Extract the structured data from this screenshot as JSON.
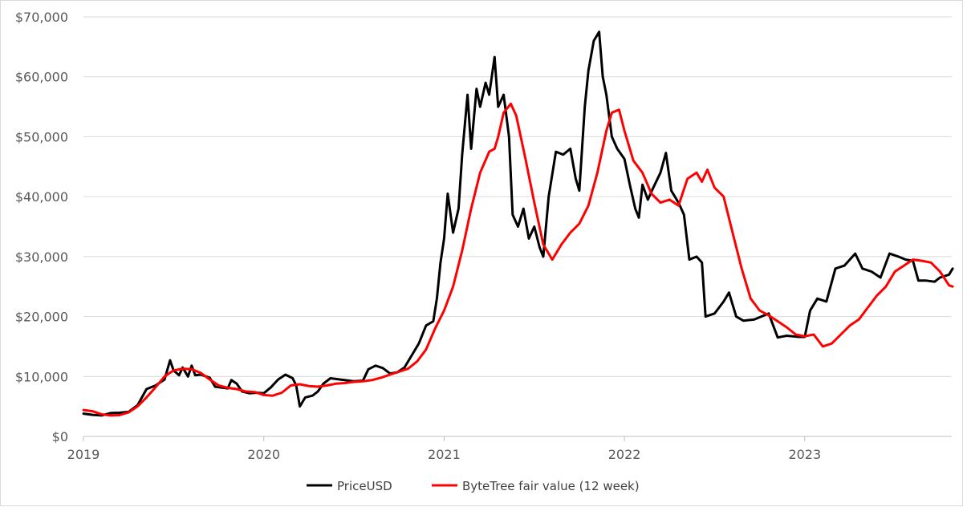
{
  "chart_data": {
    "type": "line",
    "title": "",
    "xlabel": "",
    "ylabel": "",
    "x_range": [
      2019.0,
      2023.83
    ],
    "ylim": [
      0,
      70000
    ],
    "y_ticks": [
      0,
      10000,
      20000,
      30000,
      40000,
      50000,
      60000,
      70000
    ],
    "y_tick_labels": [
      "$0",
      "$10,000",
      "$20,000",
      "$30,000",
      "$40,000",
      "$50,000",
      "$60,000",
      "$70,000"
    ],
    "x_ticks": [
      2019,
      2020,
      2021,
      2022,
      2023
    ],
    "x_tick_labels": [
      "2019",
      "2020",
      "2021",
      "2022",
      "2023"
    ],
    "grid": "horizontal",
    "legend_position": "bottom",
    "series": [
      {
        "name": "PriceUSD",
        "color": "#000000",
        "points": [
          [
            2019.0,
            3800
          ],
          [
            2019.05,
            3600
          ],
          [
            2019.1,
            3500
          ],
          [
            2019.15,
            3900
          ],
          [
            2019.2,
            3950
          ],
          [
            2019.25,
            4100
          ],
          [
            2019.3,
            5200
          ],
          [
            2019.35,
            7900
          ],
          [
            2019.4,
            8500
          ],
          [
            2019.45,
            9500
          ],
          [
            2019.48,
            12700
          ],
          [
            2019.5,
            11000
          ],
          [
            2019.53,
            10200
          ],
          [
            2019.55,
            11500
          ],
          [
            2019.58,
            10000
          ],
          [
            2019.6,
            11800
          ],
          [
            2019.62,
            10200
          ],
          [
            2019.65,
            10300
          ],
          [
            2019.7,
            9800
          ],
          [
            2019.73,
            8300
          ],
          [
            2019.75,
            8200
          ],
          [
            2019.8,
            8000
          ],
          [
            2019.82,
            9400
          ],
          [
            2019.85,
            8800
          ],
          [
            2019.88,
            7500
          ],
          [
            2019.92,
            7200
          ],
          [
            2019.96,
            7300
          ],
          [
            2020.0,
            7200
          ],
          [
            2020.04,
            8200
          ],
          [
            2020.08,
            9500
          ],
          [
            2020.12,
            10300
          ],
          [
            2020.16,
            9700
          ],
          [
            2020.18,
            8500
          ],
          [
            2020.2,
            5000
          ],
          [
            2020.23,
            6500
          ],
          [
            2020.27,
            6800
          ],
          [
            2020.3,
            7500
          ],
          [
            2020.33,
            8800
          ],
          [
            2020.37,
            9700
          ],
          [
            2020.42,
            9500
          ],
          [
            2020.5,
            9200
          ],
          [
            2020.55,
            9300
          ],
          [
            2020.58,
            11200
          ],
          [
            2020.62,
            11800
          ],
          [
            2020.66,
            11400
          ],
          [
            2020.7,
            10500
          ],
          [
            2020.74,
            10700
          ],
          [
            2020.78,
            11500
          ],
          [
            2020.82,
            13500
          ],
          [
            2020.86,
            15500
          ],
          [
            2020.9,
            18500
          ],
          [
            2020.94,
            19200
          ],
          [
            2020.96,
            23000
          ],
          [
            2020.98,
            29000
          ],
          [
            2021.0,
            33000
          ],
          [
            2021.02,
            40500
          ],
          [
            2021.05,
            34000
          ],
          [
            2021.08,
            38000
          ],
          [
            2021.1,
            47000
          ],
          [
            2021.13,
            57000
          ],
          [
            2021.15,
            48000
          ],
          [
            2021.18,
            58000
          ],
          [
            2021.2,
            55000
          ],
          [
            2021.23,
            59000
          ],
          [
            2021.25,
            57000
          ],
          [
            2021.28,
            63300
          ],
          [
            2021.3,
            55000
          ],
          [
            2021.33,
            57000
          ],
          [
            2021.36,
            50000
          ],
          [
            2021.38,
            37000
          ],
          [
            2021.41,
            35000
          ],
          [
            2021.44,
            38000
          ],
          [
            2021.47,
            33000
          ],
          [
            2021.5,
            35000
          ],
          [
            2021.53,
            31500
          ],
          [
            2021.55,
            30000
          ],
          [
            2021.58,
            40000
          ],
          [
            2021.62,
            47500
          ],
          [
            2021.66,
            47000
          ],
          [
            2021.7,
            48000
          ],
          [
            2021.73,
            43000
          ],
          [
            2021.75,
            41000
          ],
          [
            2021.78,
            55000
          ],
          [
            2021.8,
            61000
          ],
          [
            2021.83,
            66000
          ],
          [
            2021.86,
            67500
          ],
          [
            2021.88,
            60000
          ],
          [
            2021.9,
            57000
          ],
          [
            2021.93,
            50000
          ],
          [
            2021.96,
            48000
          ],
          [
            2022.0,
            46300
          ],
          [
            2022.03,
            42000
          ],
          [
            2022.06,
            38000
          ],
          [
            2022.08,
            36500
          ],
          [
            2022.1,
            42000
          ],
          [
            2022.13,
            39500
          ],
          [
            2022.16,
            41500
          ],
          [
            2022.2,
            44000
          ],
          [
            2022.23,
            47300
          ],
          [
            2022.26,
            41000
          ],
          [
            2022.3,
            39000
          ],
          [
            2022.33,
            37000
          ],
          [
            2022.36,
            29500
          ],
          [
            2022.4,
            30000
          ],
          [
            2022.43,
            29000
          ],
          [
            2022.45,
            20000
          ],
          [
            2022.5,
            20500
          ],
          [
            2022.55,
            22500
          ],
          [
            2022.58,
            24000
          ],
          [
            2022.62,
            20000
          ],
          [
            2022.66,
            19300
          ],
          [
            2022.72,
            19500
          ],
          [
            2022.8,
            20500
          ],
          [
            2022.85,
            16500
          ],
          [
            2022.9,
            16800
          ],
          [
            2022.97,
            16600
          ],
          [
            2023.0,
            16600
          ],
          [
            2023.03,
            21000
          ],
          [
            2023.07,
            23000
          ],
          [
            2023.12,
            22500
          ],
          [
            2023.17,
            28000
          ],
          [
            2023.22,
            28500
          ],
          [
            2023.28,
            30500
          ],
          [
            2023.32,
            28000
          ],
          [
            2023.37,
            27500
          ],
          [
            2023.42,
            26500
          ],
          [
            2023.47,
            30500
          ],
          [
            2023.52,
            30000
          ],
          [
            2023.56,
            29500
          ],
          [
            2023.6,
            29300
          ],
          [
            2023.63,
            26000
          ],
          [
            2023.67,
            26000
          ],
          [
            2023.72,
            25800
          ],
          [
            2023.75,
            26500
          ],
          [
            2023.8,
            27000
          ],
          [
            2023.82,
            28000
          ]
        ]
      },
      {
        "name": "ByteTree fair value (12 week)",
        "color": "#ff0000",
        "points": [
          [
            2019.0,
            4400
          ],
          [
            2019.05,
            4200
          ],
          [
            2019.1,
            3700
          ],
          [
            2019.15,
            3500
          ],
          [
            2019.2,
            3550
          ],
          [
            2019.25,
            4000
          ],
          [
            2019.3,
            5000
          ],
          [
            2019.35,
            6500
          ],
          [
            2019.4,
            8200
          ],
          [
            2019.45,
            10000
          ],
          [
            2019.5,
            11000
          ],
          [
            2019.55,
            11300
          ],
          [
            2019.6,
            11200
          ],
          [
            2019.65,
            10600
          ],
          [
            2019.7,
            9500
          ],
          [
            2019.75,
            8500
          ],
          [
            2019.8,
            8100
          ],
          [
            2019.85,
            7900
          ],
          [
            2019.9,
            7500
          ],
          [
            2019.95,
            7400
          ],
          [
            2020.0,
            6900
          ],
          [
            2020.05,
            6800
          ],
          [
            2020.1,
            7300
          ],
          [
            2020.15,
            8500
          ],
          [
            2020.2,
            8700
          ],
          [
            2020.25,
            8400
          ],
          [
            2020.3,
            8300
          ],
          [
            2020.35,
            8500
          ],
          [
            2020.4,
            8800
          ],
          [
            2020.45,
            8900
          ],
          [
            2020.5,
            9100
          ],
          [
            2020.55,
            9200
          ],
          [
            2020.6,
            9400
          ],
          [
            2020.65,
            9800
          ],
          [
            2020.7,
            10300
          ],
          [
            2020.75,
            10800
          ],
          [
            2020.8,
            11300
          ],
          [
            2020.85,
            12500
          ],
          [
            2020.9,
            14500
          ],
          [
            2020.95,
            18000
          ],
          [
            2021.0,
            21000
          ],
          [
            2021.05,
            25000
          ],
          [
            2021.1,
            31000
          ],
          [
            2021.15,
            38000
          ],
          [
            2021.2,
            44000
          ],
          [
            2021.25,
            47500
          ],
          [
            2021.28,
            48000
          ],
          [
            2021.3,
            50000
          ],
          [
            2021.33,
            54000
          ],
          [
            2021.37,
            55500
          ],
          [
            2021.4,
            53500
          ],
          [
            2021.45,
            46500
          ],
          [
            2021.5,
            39000
          ],
          [
            2021.55,
            32000
          ],
          [
            2021.6,
            29500
          ],
          [
            2021.65,
            32000
          ],
          [
            2021.7,
            34000
          ],
          [
            2021.75,
            35500
          ],
          [
            2021.8,
            38500
          ],
          [
            2021.85,
            44000
          ],
          [
            2021.9,
            51000
          ],
          [
            2021.93,
            54000
          ],
          [
            2021.97,
            54500
          ],
          [
            2022.0,
            51000
          ],
          [
            2022.05,
            46000
          ],
          [
            2022.1,
            44000
          ],
          [
            2022.15,
            40500
          ],
          [
            2022.2,
            39000
          ],
          [
            2022.25,
            39500
          ],
          [
            2022.3,
            38500
          ],
          [
            2022.35,
            43000
          ],
          [
            2022.4,
            44000
          ],
          [
            2022.43,
            42500
          ],
          [
            2022.46,
            44500
          ],
          [
            2022.5,
            41500
          ],
          [
            2022.55,
            40000
          ],
          [
            2022.6,
            34000
          ],
          [
            2022.65,
            28000
          ],
          [
            2022.7,
            23000
          ],
          [
            2022.75,
            21000
          ],
          [
            2022.8,
            20200
          ],
          [
            2022.85,
            19200
          ],
          [
            2022.9,
            18200
          ],
          [
            2022.95,
            17000
          ],
          [
            2023.0,
            16700
          ],
          [
            2023.05,
            17000
          ],
          [
            2023.1,
            15000
          ],
          [
            2023.15,
            15500
          ],
          [
            2023.2,
            17000
          ],
          [
            2023.25,
            18500
          ],
          [
            2023.3,
            19500
          ],
          [
            2023.35,
            21500
          ],
          [
            2023.4,
            23500
          ],
          [
            2023.45,
            25000
          ],
          [
            2023.5,
            27500
          ],
          [
            2023.55,
            28500
          ],
          [
            2023.6,
            29500
          ],
          [
            2023.65,
            29300
          ],
          [
            2023.7,
            29000
          ],
          [
            2023.75,
            27500
          ],
          [
            2023.8,
            25200
          ],
          [
            2023.82,
            25000
          ]
        ]
      }
    ]
  }
}
